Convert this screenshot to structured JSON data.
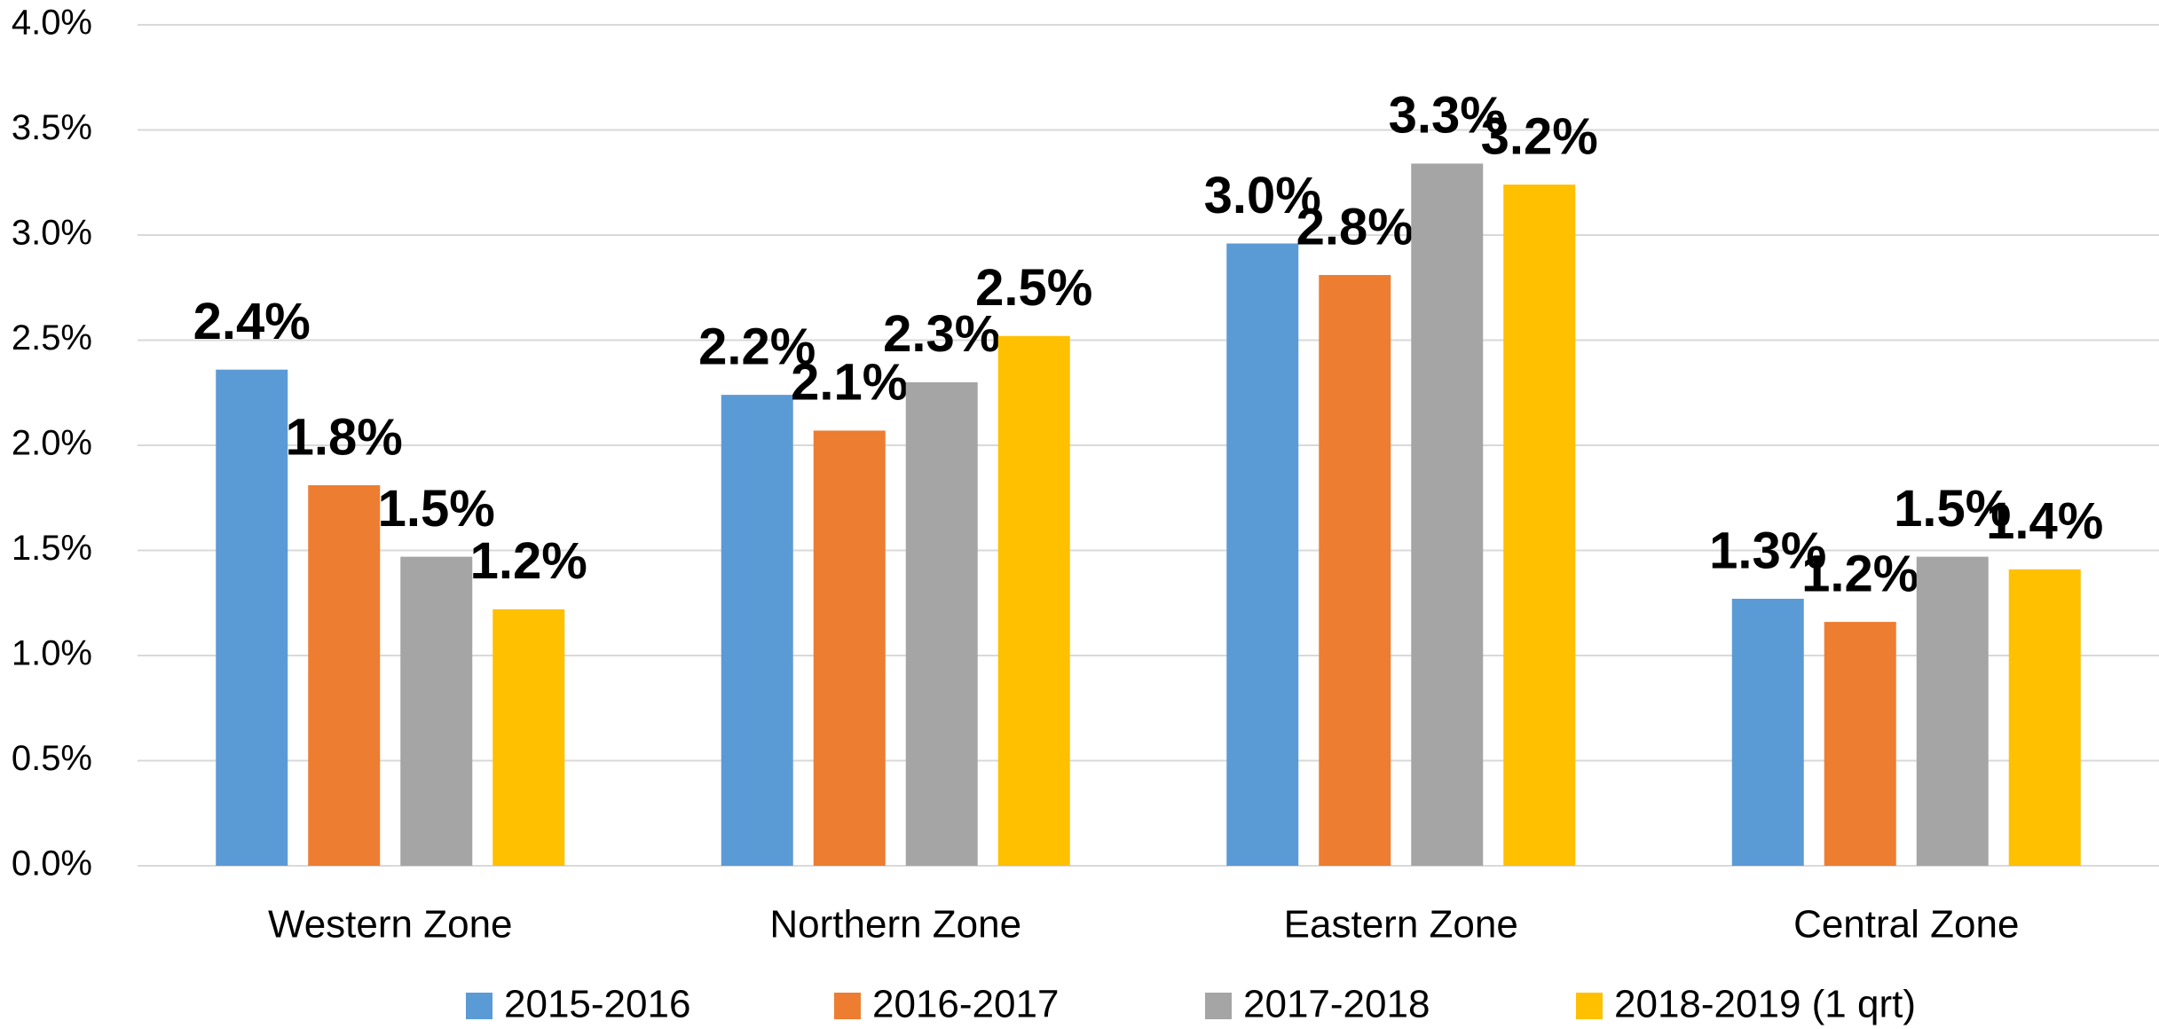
{
  "chart_data": {
    "type": "bar",
    "categories": [
      "Western Zone",
      "Northern Zone",
      "Eastern Zone",
      "Central Zone"
    ],
    "series": [
      {
        "name": "2015-2016",
        "color": "#5b9bd5",
        "values": [
          2.36,
          2.24,
          2.96,
          1.27
        ],
        "value_labels": [
          "2.4%",
          "2.2%",
          "3.0%",
          "1.3%"
        ]
      },
      {
        "name": "2016-2017",
        "color": "#ed7d31",
        "values": [
          1.81,
          2.07,
          2.81,
          1.16
        ],
        "value_labels": [
          "1.8%",
          "2.1%",
          "2.8%",
          "1.2%"
        ]
      },
      {
        "name": "2017-2018",
        "color": "#a5a5a5",
        "values": [
          1.47,
          2.3,
          3.34,
          1.47
        ],
        "value_labels": [
          "1.5%",
          "2.3%",
          "3.3%",
          "1.5%"
        ]
      },
      {
        "name": "2018-2019 (1 qrt)",
        "color": "#ffc000",
        "values": [
          1.22,
          2.52,
          3.24,
          1.41
        ],
        "value_labels": [
          "1.2%",
          "2.5%",
          "3.2%",
          "1.4%"
        ]
      }
    ],
    "ylim": [
      0,
      4
    ],
    "yticks": [
      {
        "value": 0,
        "label": "0.0%"
      },
      {
        "value": 0.5,
        "label": "0.5%"
      },
      {
        "value": 1,
        "label": "1.0%"
      },
      {
        "value": 1.5,
        "label": "1.5%"
      },
      {
        "value": 2,
        "label": "2.0%"
      },
      {
        "value": 2.5,
        "label": "2.5%"
      },
      {
        "value": 3,
        "label": "3.0%"
      },
      {
        "value": 3.5,
        "label": "3.5%"
      },
      {
        "value": 4,
        "label": "4.0%"
      }
    ],
    "grid": true,
    "legend": "bottom"
  }
}
